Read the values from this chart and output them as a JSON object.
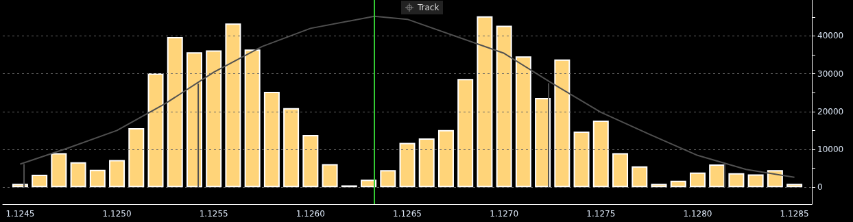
{
  "chart_data": {
    "type": "bar",
    "annotations": [
      "Track"
    ],
    "x": [
      1.1245,
      1.1246,
      1.1247,
      1.1248,
      1.1249,
      1.125,
      1.1251,
      1.1252,
      1.1253,
      1.1254,
      1.1255,
      1.1256,
      1.1257,
      1.1258,
      1.1259,
      1.126,
      1.1261,
      1.1262,
      1.1263,
      1.1264,
      1.1265,
      1.1266,
      1.1267,
      1.1268,
      1.1269,
      1.127,
      1.1271,
      1.1272,
      1.1273,
      1.1274,
      1.1275,
      1.1276,
      1.1277,
      1.1278,
      1.1279,
      1.128,
      1.1281,
      1.1282,
      1.1283,
      1.1284,
      1.1285
    ],
    "series": [
      {
        "color": "#ffd479",
        "values": [
          900,
          3300,
          9000,
          6600,
          4600,
          7200,
          15600,
          30100,
          39700,
          35700,
          36200,
          43300,
          36400,
          25200,
          20900,
          13800,
          6100,
          500,
          2000,
          4500,
          11700,
          12900,
          15100,
          28600,
          45200,
          42700,
          34600,
          23600,
          33800,
          14700,
          17600,
          9000,
          5500,
          900,
          1700,
          3900,
          6000,
          3700,
          3400,
          4500,
          900
        ]
      },
      {
        "type": "line",
        "color": "#505050",
        "x": [
          1.1245,
          1.12475,
          1.125,
          1.12525,
          1.1255,
          1.12575,
          1.126,
          1.12633,
          1.1265,
          1.127,
          1.12725,
          1.1275,
          1.12775,
          1.128,
          1.12825,
          1.1285
        ],
        "values": [
          6100,
          10400,
          15000,
          22100,
          30400,
          37200,
          42000,
          45200,
          44400,
          35400,
          27400,
          19800,
          14000,
          8400,
          4700,
          2600
        ]
      },
      {
        "type": "line",
        "color": "#505050",
        "x": [
          1.12452,
          1.12452
        ],
        "values": [
          0,
          6100
        ]
      },
      {
        "type": "line",
        "color": "#505050",
        "x": [
          1.12542,
          1.12542
        ],
        "values": [
          0,
          27400
        ]
      },
      {
        "type": "line",
        "color": "#505050",
        "x": [
          1.12723,
          1.12723
        ],
        "values": [
          0,
          27500
        ]
      },
      {
        "type": "line",
        "color": "#505050",
        "x": [
          1.12814,
          1.12814
        ],
        "values": [
          0,
          6200
        ]
      }
    ],
    "ref_lines": [
      {
        "axis": "x",
        "value": 1.12633,
        "color": "#33cc33",
        "line_style": "solid"
      }
    ],
    "xlim": [
      1.12441,
      1.12859
    ],
    "xticks": [
      1.1245,
      {
        "value": 1.125,
        "label": "1.1250"
      },
      1.1255,
      {
        "value": 1.126,
        "label": "1.1260"
      },
      1.1265,
      {
        "value": 1.127,
        "label": "1.1270"
      },
      1.1275,
      {
        "value": 1.128,
        "label": "1.1280"
      },
      1.1285
    ],
    "ylim": [
      -4500,
      49500
    ],
    "yticks": [
      0,
      {
        "value": 5000,
        "label": null
      },
      10000,
      {
        "value": 15000,
        "label": null
      },
      20000,
      {
        "value": 25000,
        "label": null
      },
      30000,
      {
        "value": 35000,
        "label": null
      },
      40000,
      {
        "value": 45000,
        "label": null
      }
    ],
    "grid": true,
    "marker": "none",
    "line_style": "solid"
  }
}
